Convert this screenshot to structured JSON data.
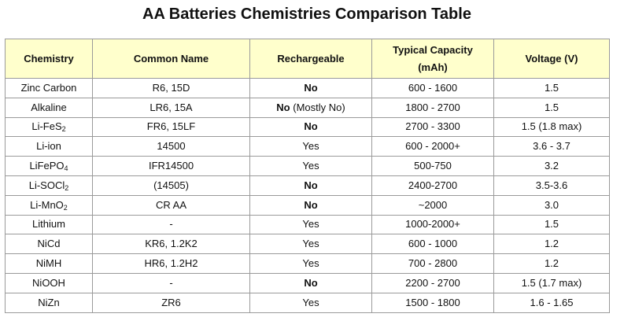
{
  "title": "AA Batteries Chemistries Comparison Table",
  "headers": [
    "Chemistry",
    "Common Name",
    "Rechargeable",
    "Typical Capacity",
    "(mAh)",
    "Voltage (V)"
  ],
  "rows": [
    {
      "chem": "Zinc Carbon",
      "chem_sub": "",
      "chem_after": "",
      "name": "R6, 15D",
      "rech": "No",
      "rech_note": "",
      "rech_bold": true,
      "cap": "600 - 1600",
      "volt": "1.5"
    },
    {
      "chem": "Alkaline",
      "chem_sub": "",
      "chem_after": "",
      "name": "LR6, 15A",
      "rech": "No",
      "rech_note": " (Mostly No)",
      "rech_bold": true,
      "cap": "1800 - 2700",
      "volt": "1.5"
    },
    {
      "chem": "Li-FeS",
      "chem_sub": "2",
      "chem_after": "",
      "name": "FR6, 15LF",
      "rech": "No",
      "rech_note": "",
      "rech_bold": true,
      "cap": "2700 - 3300",
      "volt": "1.5 (1.8 max)"
    },
    {
      "chem": "Li-ion",
      "chem_sub": "",
      "chem_after": "",
      "name": "14500",
      "rech": "Yes",
      "rech_note": "",
      "rech_bold": false,
      "cap": "600 - 2000+",
      "volt": "3.6 - 3.7"
    },
    {
      "chem": "LiFePO",
      "chem_sub": "4",
      "chem_after": "",
      "name": "IFR14500",
      "rech": "Yes",
      "rech_note": "",
      "rech_bold": false,
      "cap": "500-750",
      "volt": "3.2"
    },
    {
      "chem": "Li-SOCl",
      "chem_sub": "2",
      "chem_after": "",
      "name": "(14505)",
      "rech": "No",
      "rech_note": "",
      "rech_bold": true,
      "cap": "2400-2700",
      "volt": "3.5-3.6"
    },
    {
      "chem": "Li-MnO",
      "chem_sub": "2",
      "chem_after": "",
      "name": "CR AA",
      "rech": "No",
      "rech_note": "",
      "rech_bold": true,
      "cap": "~2000",
      "volt": "3.0"
    },
    {
      "chem": "Lithium",
      "chem_sub": "",
      "chem_after": "",
      "name": "-",
      "rech": "Yes",
      "rech_note": "",
      "rech_bold": false,
      "cap": "1000-2000+",
      "volt": "1.5"
    },
    {
      "chem": "NiCd",
      "chem_sub": "",
      "chem_after": "",
      "name": "KR6, 1.2K2",
      "rech": "Yes",
      "rech_note": "",
      "rech_bold": false,
      "cap": "600 - 1000",
      "volt": "1.2"
    },
    {
      "chem": "NiMH",
      "chem_sub": "",
      "chem_after": "",
      "name": "HR6, 1.2H2",
      "rech": "Yes",
      "rech_note": "",
      "rech_bold": false,
      "cap": "700 - 2800",
      "volt": "1.2"
    },
    {
      "chem": "NiOOH",
      "chem_sub": "",
      "chem_after": "",
      "name": "-",
      "rech": "No",
      "rech_note": "",
      "rech_bold": true,
      "cap": "2200 - 2700",
      "volt": "1.5 (1.7 max)"
    },
    {
      "chem": "NiZn",
      "chem_sub": "",
      "chem_after": "",
      "name": "ZR6",
      "rech": "Yes",
      "rech_note": "",
      "rech_bold": false,
      "cap": "1500 - 1800",
      "volt": "1.6 - 1.65"
    }
  ],
  "colors": {
    "header_bg": "#ffffcc",
    "border": "#9a9a9a",
    "text": "#111111"
  }
}
